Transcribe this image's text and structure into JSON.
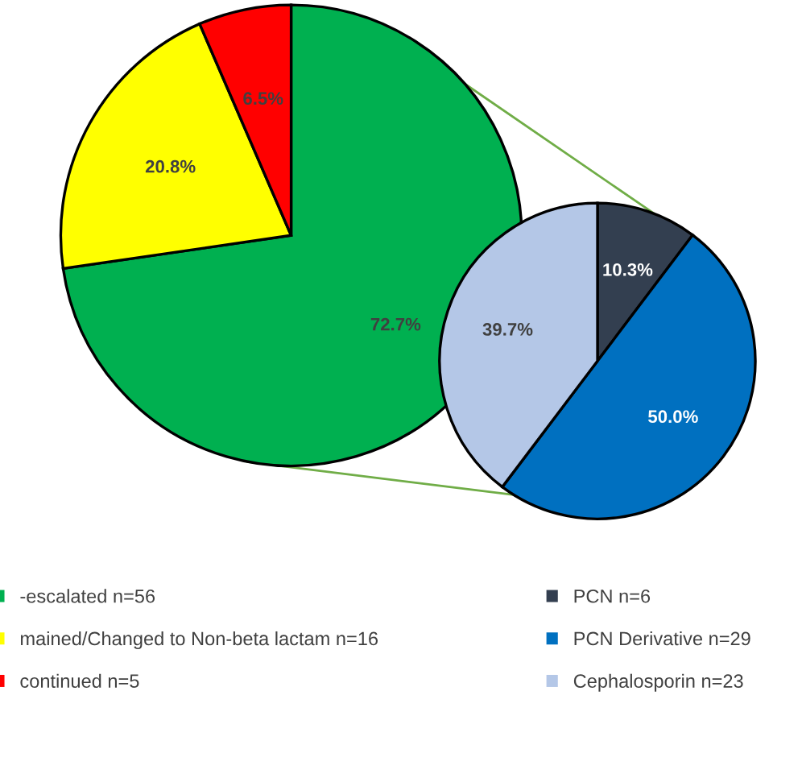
{
  "chart_data": [
    {
      "type": "pie",
      "categories": [
        "-escalated n=56",
        "mained/Changed to Non-beta lactam n=16",
        "continued n=5"
      ],
      "values": [
        72.7,
        20.8,
        6.5
      ],
      "colors": [
        "#00b050",
        "#ffff00",
        "#ff0000"
      ],
      "value_labels": [
        "72.7%",
        "20.8%",
        "6.5%"
      ],
      "legend": "bottom left"
    },
    {
      "type": "pie",
      "categories": [
        "PCN n=6",
        "PCN Derivative n=29",
        "Cephalosporin n=23"
      ],
      "values": [
        10.3,
        50.0,
        39.7
      ],
      "colors": [
        "#333f50",
        "#0070c0",
        "#b4c7e7"
      ],
      "value_labels": [
        "10.3%",
        "50.0%",
        "39.7%"
      ],
      "legend": "bottom right"
    }
  ]
}
